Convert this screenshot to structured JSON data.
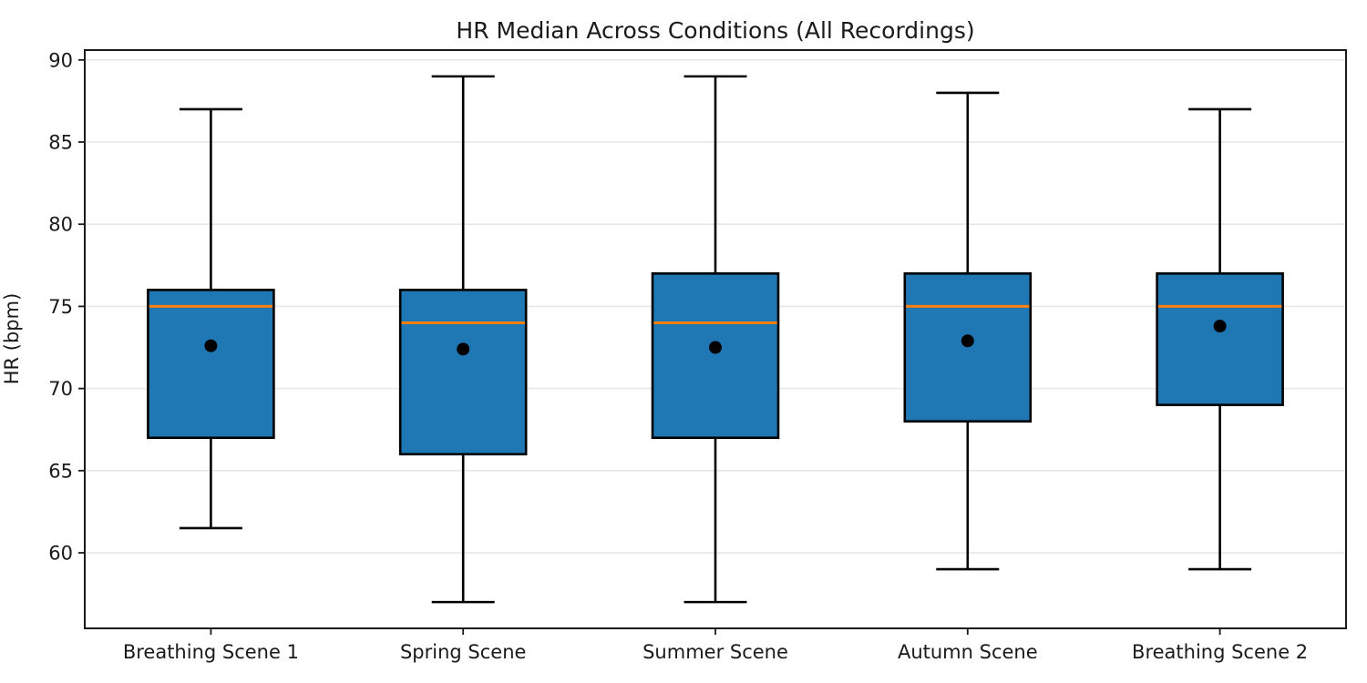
{
  "chart_data": {
    "type": "box",
    "title": "HR Median Across Conditions (All Recordings)",
    "xlabel": "",
    "ylabel": "HR (bpm)",
    "categories": [
      "Breathing Scene 1",
      "Spring Scene",
      "Summer Scene",
      "Autumn Scene",
      "Breathing Scene 2"
    ],
    "series": [
      {
        "name": "Breathing Scene 1",
        "whisker_low": 61.5,
        "q1": 67,
        "median": 75,
        "q3": 76,
        "whisker_high": 87,
        "mean": 72.6
      },
      {
        "name": "Spring Scene",
        "whisker_low": 57,
        "q1": 66,
        "median": 74,
        "q3": 76,
        "whisker_high": 89,
        "mean": 72.4
      },
      {
        "name": "Summer Scene",
        "whisker_low": 57,
        "q1": 67,
        "median": 74,
        "q3": 77,
        "whisker_high": 89,
        "mean": 72.5
      },
      {
        "name": "Autumn Scene",
        "whisker_low": 59,
        "q1": 68,
        "median": 75,
        "q3": 77,
        "whisker_high": 88,
        "mean": 72.9
      },
      {
        "name": "Breathing Scene 2",
        "whisker_low": 59,
        "q1": 69,
        "median": 75,
        "q3": 77,
        "whisker_high": 87,
        "mean": 73.8
      }
    ],
    "yticks": [
      60,
      65,
      70,
      75,
      80,
      85,
      90
    ],
    "ylim": [
      55.4,
      90.6
    ],
    "grid": "horizontal",
    "legend": "none",
    "colors": {
      "box_fill": "#1f77b4",
      "box_edge": "#000000",
      "median_line": "#ff7f0e",
      "mean_marker": "#000000",
      "whisker": "#000000",
      "grid_line": "#e7e7e7",
      "spine": "#1a1a1a",
      "tick": "#1a1a1a",
      "background": "#ffffff"
    }
  }
}
